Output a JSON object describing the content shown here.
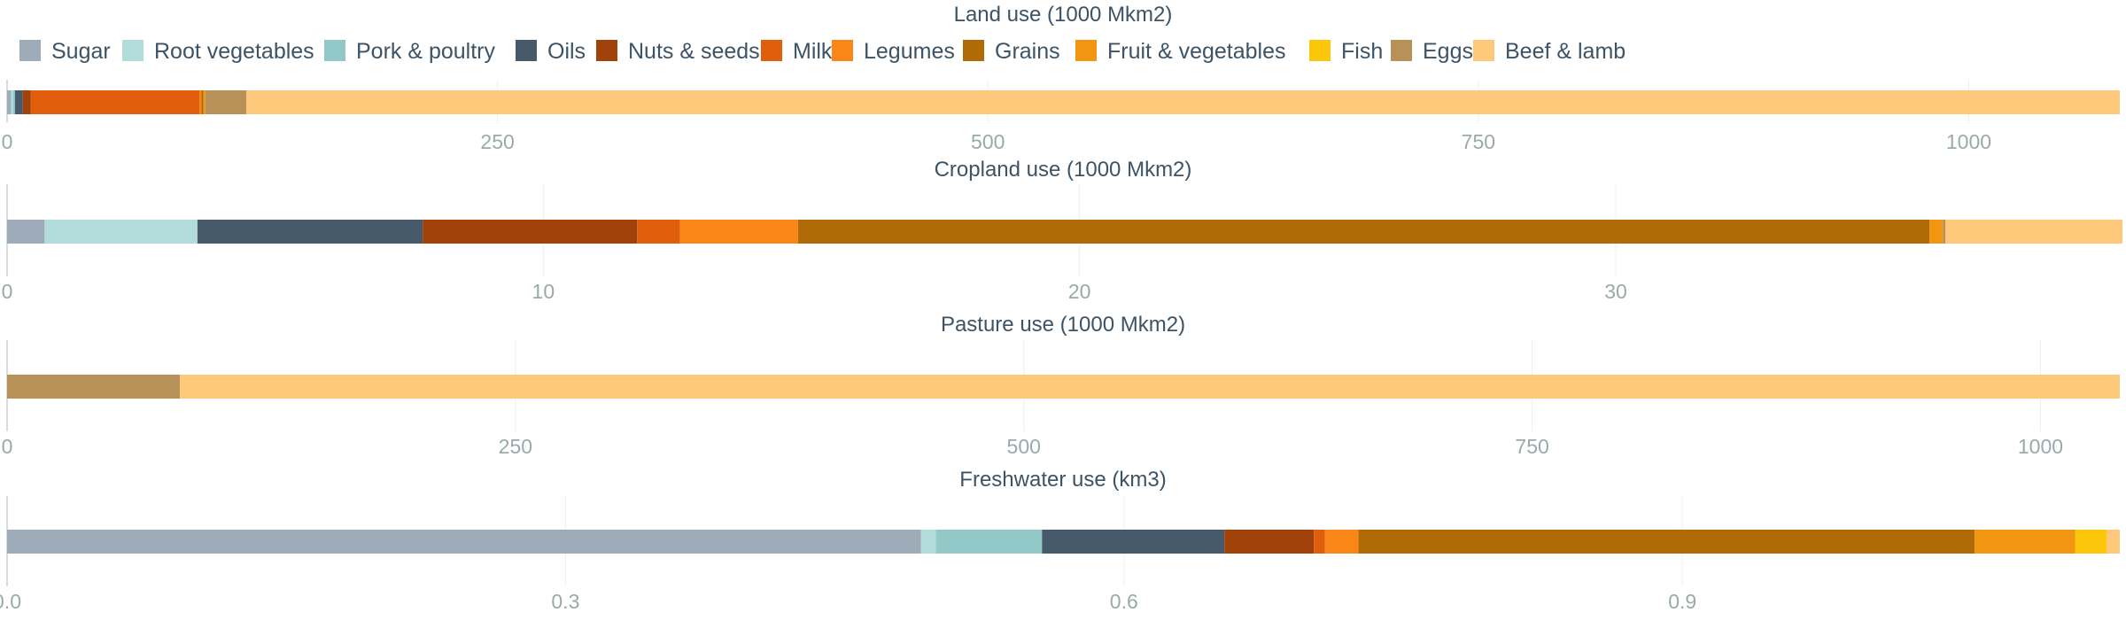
{
  "chart_data": {
    "type": "bar",
    "orientation": "horizontal",
    "stacked": true,
    "legend_placement": "top-left",
    "grid": true,
    "legend": [
      {
        "name": "Sugar",
        "color": "#9eacba"
      },
      {
        "name": "Root vegetables",
        "color": "#b2dcda"
      },
      {
        "name": "Pork & poultry",
        "color": "#92c8c7"
      },
      {
        "name": "Oils",
        "color": "#465a6b"
      },
      {
        "name": "Nuts & seeds",
        "color": "#a1420a"
      },
      {
        "name": "Milk",
        "color": "#e05e0c"
      },
      {
        "name": "Legumes",
        "color": "#f98616"
      },
      {
        "name": "Grains",
        "color": "#b06b06"
      },
      {
        "name": "Fruit & vegetables",
        "color": "#f29510"
      },
      {
        "name": "Fish",
        "color": "#fcc70b"
      },
      {
        "name": "Eggs",
        "color": "#b89158"
      },
      {
        "name": "Beef & lamb",
        "color": "#fdc879"
      }
    ],
    "panels": [
      {
        "title": "Land use (1000 Mkm2)",
        "xlim": [
          0,
          1077
        ],
        "ticks": [
          0,
          250,
          500,
          750,
          1000
        ],
        "tick_labels": [
          "0",
          "250",
          "500",
          "750",
          "1000"
        ],
        "segments": [
          {
            "series": "Sugar",
            "value": 2
          },
          {
            "series": "Root vegetables",
            "value": 1
          },
          {
            "series": "Pork & poultry",
            "value": 1
          },
          {
            "series": "Oils",
            "value": 4
          },
          {
            "series": "Nuts & seeds",
            "value": 4
          },
          {
            "series": "Milk",
            "value": 86
          },
          {
            "series": "Legumes",
            "value": 1
          },
          {
            "series": "Grains",
            "value": 1
          },
          {
            "series": "Fruit & vegetables",
            "value": 1
          },
          {
            "series": "Eggs",
            "value": 21
          },
          {
            "series": "Beef & lamb",
            "value": 955
          }
        ]
      },
      {
        "title": "Cropland use (1000 Mkm2)",
        "xlim": [
          0,
          39.4
        ],
        "ticks": [
          0,
          10,
          20,
          30
        ],
        "tick_labels": [
          "0",
          "10",
          "20",
          "30"
        ],
        "segments": [
          {
            "series": "Sugar",
            "value": 0.7
          },
          {
            "series": "Root vegetables",
            "value": 2.85
          },
          {
            "series": "Oils",
            "value": 4.2
          },
          {
            "series": "Nuts & seeds",
            "value": 4.0
          },
          {
            "series": "Milk",
            "value": 0.8
          },
          {
            "series": "Legumes",
            "value": 2.2
          },
          {
            "series": "Grains",
            "value": 21.1
          },
          {
            "series": "Fruit & vegetables",
            "value": 0.25
          },
          {
            "series": "Eggs",
            "value": 0.05
          },
          {
            "series": "Beef & lamb",
            "value": 3.3
          }
        ]
      },
      {
        "title": "Pasture use (1000 Mkm2)",
        "xlim": [
          0,
          1039
        ],
        "ticks": [
          0,
          250,
          500,
          750,
          1000
        ],
        "tick_labels": [
          "0",
          "250",
          "500",
          "750",
          "1000"
        ],
        "segments": [
          {
            "series": "Eggs",
            "value": 85
          },
          {
            "series": "Beef & lamb",
            "value": 954
          }
        ]
      },
      {
        "title": "Freshwater use (km3)",
        "xlim": [
          0,
          1.135
        ],
        "ticks": [
          0,
          0.3,
          0.6,
          0.9
        ],
        "tick_labels": [
          "0.0",
          "0.3",
          "0.6",
          "0.9"
        ],
        "segments": [
          {
            "series": "Sugar",
            "value": 0.491
          },
          {
            "series": "Root vegetables",
            "value": 0.008
          },
          {
            "series": "Pork & poultry",
            "value": 0.057
          },
          {
            "series": "Oils",
            "value": 0.098
          },
          {
            "series": "Nuts & seeds",
            "value": 0.048
          },
          {
            "series": "Milk",
            "value": 0.006
          },
          {
            "series": "Legumes",
            "value": 0.018
          },
          {
            "series": "Grains",
            "value": 0.331
          },
          {
            "series": "Fruit & vegetables",
            "value": 0.054
          },
          {
            "series": "Fish",
            "value": 0.017
          },
          {
            "series": "Beef & lamb",
            "value": 0.007
          }
        ]
      }
    ]
  }
}
